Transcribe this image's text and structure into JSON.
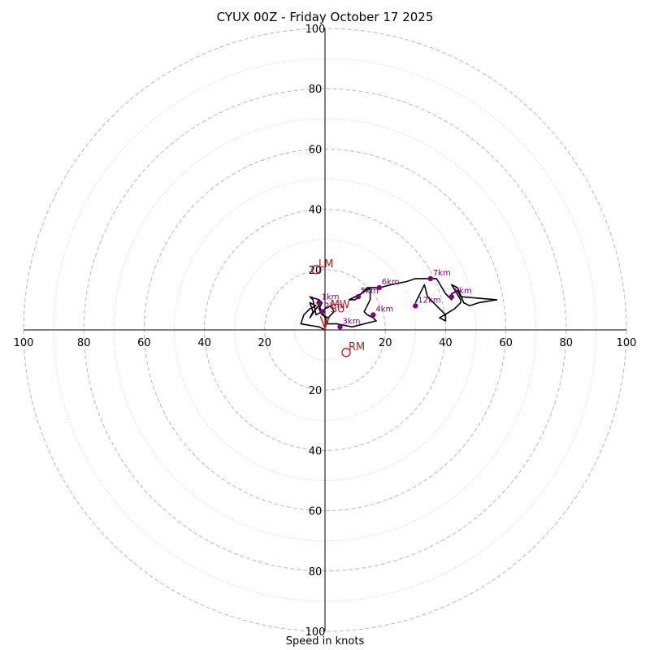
{
  "chart_data": {
    "type": "hodograph",
    "title": "CYUX 00Z - Friday October 17 2025",
    "xlabel": "Speed in knots",
    "ring_step_labeled": 20,
    "ring_step_minor": 10,
    "max_speed": 100,
    "x_ticks": [
      "100",
      "80",
      "60",
      "40",
      "20",
      "20",
      "40",
      "60",
      "80",
      "100"
    ],
    "y_ticks": [
      "100",
      "80",
      "60",
      "40",
      "20",
      "20",
      "40",
      "60",
      "80",
      "100"
    ],
    "hodograph_line": {
      "color": "#000000",
      "points": [
        [
          0,
          0
        ],
        [
          -2,
          1
        ],
        [
          -8,
          2
        ],
        [
          -7,
          5
        ],
        [
          -5,
          7
        ],
        [
          -3,
          8
        ],
        [
          -5,
          9
        ],
        [
          -4,
          6
        ],
        [
          -5,
          4
        ],
        [
          -3,
          7
        ],
        [
          -2,
          8
        ],
        [
          -1,
          6
        ],
        [
          -3,
          5
        ],
        [
          -4,
          10
        ],
        [
          -5,
          11
        ],
        [
          -2,
          10
        ],
        [
          -1,
          9
        ],
        [
          -2,
          7
        ],
        [
          -1,
          5
        ],
        [
          1,
          4
        ],
        [
          3,
          6
        ],
        [
          2,
          8
        ],
        [
          0,
          7
        ],
        [
          -1,
          6
        ],
        [
          1,
          2
        ],
        [
          4,
          2
        ],
        [
          9,
          1
        ],
        [
          17,
          3
        ],
        [
          16,
          4
        ],
        [
          14,
          5
        ],
        [
          13,
          6
        ],
        [
          14,
          8
        ],
        [
          15,
          10
        ],
        [
          15,
          14
        ],
        [
          14,
          14
        ],
        [
          12,
          12
        ],
        [
          10,
          10
        ],
        [
          8,
          10
        ],
        [
          12,
          12
        ],
        [
          15,
          14
        ],
        [
          18,
          14
        ],
        [
          22,
          15
        ],
        [
          27,
          16
        ],
        [
          30,
          17
        ],
        [
          35,
          17
        ],
        [
          37,
          17
        ],
        [
          40,
          12
        ],
        [
          42,
          10
        ],
        [
          42,
          12
        ],
        [
          44,
          13
        ],
        [
          45,
          11
        ],
        [
          57,
          10
        ],
        [
          51,
          9
        ],
        [
          48,
          8
        ],
        [
          46,
          9
        ],
        [
          44,
          14
        ],
        [
          42,
          15
        ],
        [
          45,
          10
        ],
        [
          45,
          9
        ],
        [
          44,
          8
        ],
        [
          43,
          7
        ],
        [
          38,
          4
        ],
        [
          40,
          3
        ],
        [
          40,
          5
        ],
        [
          37,
          8
        ],
        [
          34,
          11
        ],
        [
          33,
          15
        ],
        [
          32,
          13
        ],
        [
          30,
          9
        ]
      ]
    },
    "height_markers": {
      "color": "#800080",
      "points": [
        {
          "label": "1km",
          "x": -2,
          "y": 9
        },
        {
          "label": "2km",
          "x": -1,
          "y": 6
        },
        {
          "label": "3km",
          "x": 5,
          "y": 1
        },
        {
          "label": "4km",
          "x": 16,
          "y": 5
        },
        {
          "label": "5km",
          "x": 11,
          "y": 11
        },
        {
          "label": "6km",
          "x": 18,
          "y": 14
        },
        {
          "label": "7km",
          "x": 35,
          "y": 17
        },
        {
          "label": "8km",
          "x": 42,
          "y": 11
        },
        {
          "label": "12km",
          "x": 30,
          "y": 8
        }
      ]
    },
    "motion_markers": {
      "color": "#b22222",
      "points": [
        {
          "label": "LM",
          "x": -3,
          "y": 20
        },
        {
          "label": "RM",
          "x": 7,
          "y": -7.5
        },
        {
          "label": "MW",
          "x": 1,
          "y": 6.5
        },
        {
          "label": "SU",
          "x": 1,
          "y": 5
        }
      ]
    }
  }
}
